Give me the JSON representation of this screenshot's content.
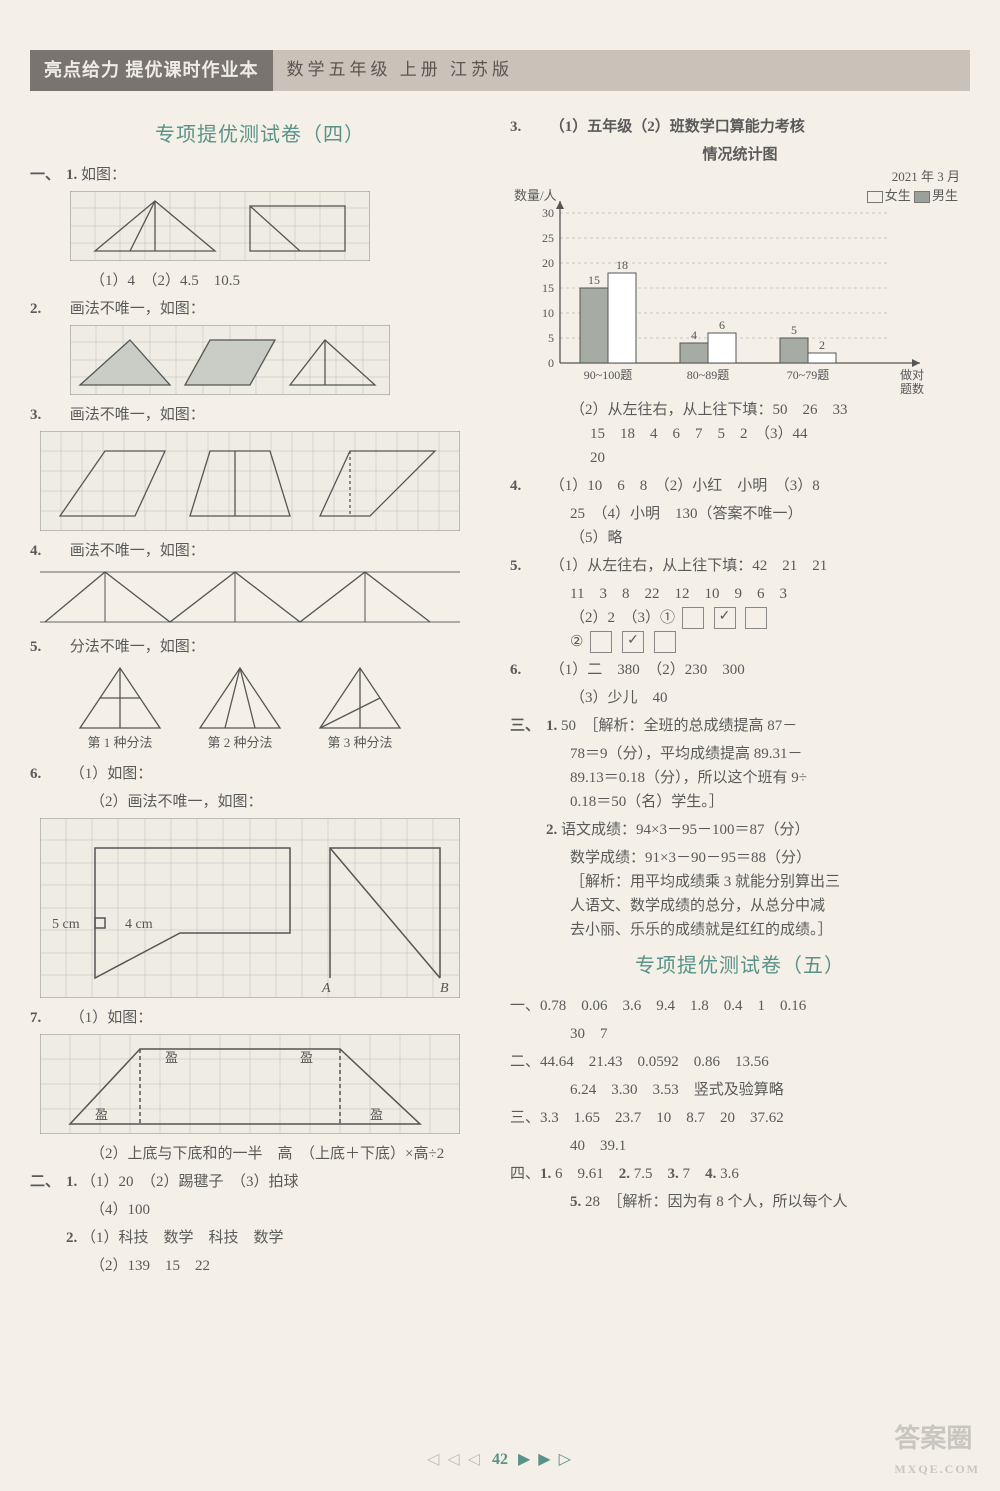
{
  "header": {
    "left": "亮点给力 提优课时作业本",
    "right": "数学五年级 上册 江苏版"
  },
  "col1": {
    "title": "专项提优测试卷（四）",
    "s1": {
      "prefix": "一、",
      "items": {
        "1": {
          "label": "1.",
          "text": "如图：",
          "sub": "（1）4　（2）4.5　10.5"
        },
        "2": {
          "label": "2.",
          "text": "画法不唯一，如图："
        },
        "3": {
          "label": "3.",
          "text": "画法不唯一，如图："
        },
        "4": {
          "label": "4.",
          "text": "画法不唯一，如图："
        },
        "5": {
          "label": "5.",
          "text": "分法不唯一，如图：",
          "captions": [
            "第 1 种分法",
            "第 2 种分法",
            "第 3 种分法"
          ]
        },
        "6": {
          "label": "6.",
          "a": "（1）如图：",
          "b": "（2）画法不唯一，如图：",
          "dims": {
            "l": "5 cm",
            "r": "4 cm",
            "A": "A",
            "B": "B"
          }
        },
        "7": {
          "label": "7.",
          "a": "（1）如图：",
          "boxes": [
            "盈",
            "盈",
            "盈",
            "盈"
          ],
          "b": "（2）上底与下底和的一半　高　（上底＋下底）×高÷2"
        }
      }
    },
    "s2": {
      "prefix": "二、",
      "items": {
        "1": {
          "label": "1.",
          "text": "（1）20　（2）踢毽子　（3）拍球",
          "sub": "（4）100"
        },
        "2": {
          "label": "2.",
          "text": "（1）科技　数学　科技　数学",
          "sub": "（2）139　15　22"
        }
      }
    }
  },
  "col2": {
    "q3": {
      "label": "3.",
      "chart": {
        "title_a": "（1）五年级（2）班数学口算能力考核",
        "title_b": "情况统计图",
        "date": "2021 年 3 月",
        "yaxis": "数量/人",
        "legend": {
          "g1": "女生",
          "g2": "男生"
        },
        "yticks": [
          "0",
          "5",
          "10",
          "15",
          "20",
          "25",
          "30"
        ],
        "xcats": [
          "90~100题",
          "80~89题",
          "70~79题"
        ],
        "xaxis_label": "做对题数",
        "bars": [
          {
            "girl": 15,
            "boy": 18,
            "gl": "15",
            "bl": "18"
          },
          {
            "girl": 4,
            "boy": 6,
            "gl": "4",
            "bl": "6"
          },
          {
            "girl": 5,
            "boy": 2,
            "gl": "5",
            "bl": "2"
          }
        ],
        "colors": {
          "girl": "#a6aba4",
          "boy": "#ffffff",
          "axis": "#555",
          "grid": "#bbb",
          "text": "#555"
        }
      },
      "p2": "（2）从左往右，从上往下填：50　26　33",
      "p2b": "15　18　4　6　7　5　2　（3）44",
      "p2c": "20"
    },
    "q4": {
      "label": "4.",
      "a": "（1）10　6　8　（2）小红　小明　（3）8",
      "b": "25　（4）小明　130（答案不唯一）",
      "c": "（5）略"
    },
    "q5": {
      "label": "5.",
      "a": "（1）从左往右，从上往下填：42　21　21",
      "b": "11　3　8　22　12　10　9　6　3",
      "c": "（2）2　（3）①",
      "d": "②"
    },
    "q6": {
      "label": "6.",
      "a": "（1）二　380　（2）230　300",
      "b": "（3）少儿　40"
    },
    "s3": {
      "prefix": "三、",
      "i1": {
        "label": "1.",
        "text": "50　［解析：全班的总成绩提高 87－",
        "b": "78＝9（分），平均成绩提高 89.31－",
        "c": "89.13＝0.18（分），所以这个班有 9÷",
        "d": "0.18＝50（名）学生。］"
      },
      "i2": {
        "label": "2.",
        "a": "语文成绩：94×3－95－100＝87（分）",
        "b": "数学成绩：91×3－90－95＝88（分）",
        "c": "［解析：用平均成绩乘 3 就能分别算出三",
        "d": "人语文、数学成绩的总分，从总分中减",
        "e": "去小丽、乐乐的成绩就是红红的成绩。］"
      }
    },
    "title5": "专项提优测试卷（五）",
    "t5": {
      "l1": "一、0.78　0.06　3.6　9.4　1.8　0.4　1　0.16",
      "l1b": "30　7",
      "l2": "二、44.64　21.43　0.0592　0.86　13.56",
      "l2b": "6.24　3.30　3.53　竖式及验算略",
      "l3": "三、3.3　1.65　23.7　10　8.7　20　37.62",
      "l3b": "40　39.1",
      "l4": "四、1. 6　9.61　2. 7.5　3. 7　4. 3.6",
      "l5": "5. 28　［解析：因为有 8 个人，所以每个人"
    }
  },
  "footer": {
    "page": "42"
  },
  "watermark": {
    "main": "答案圈",
    "sub": "MXQE.COM"
  }
}
